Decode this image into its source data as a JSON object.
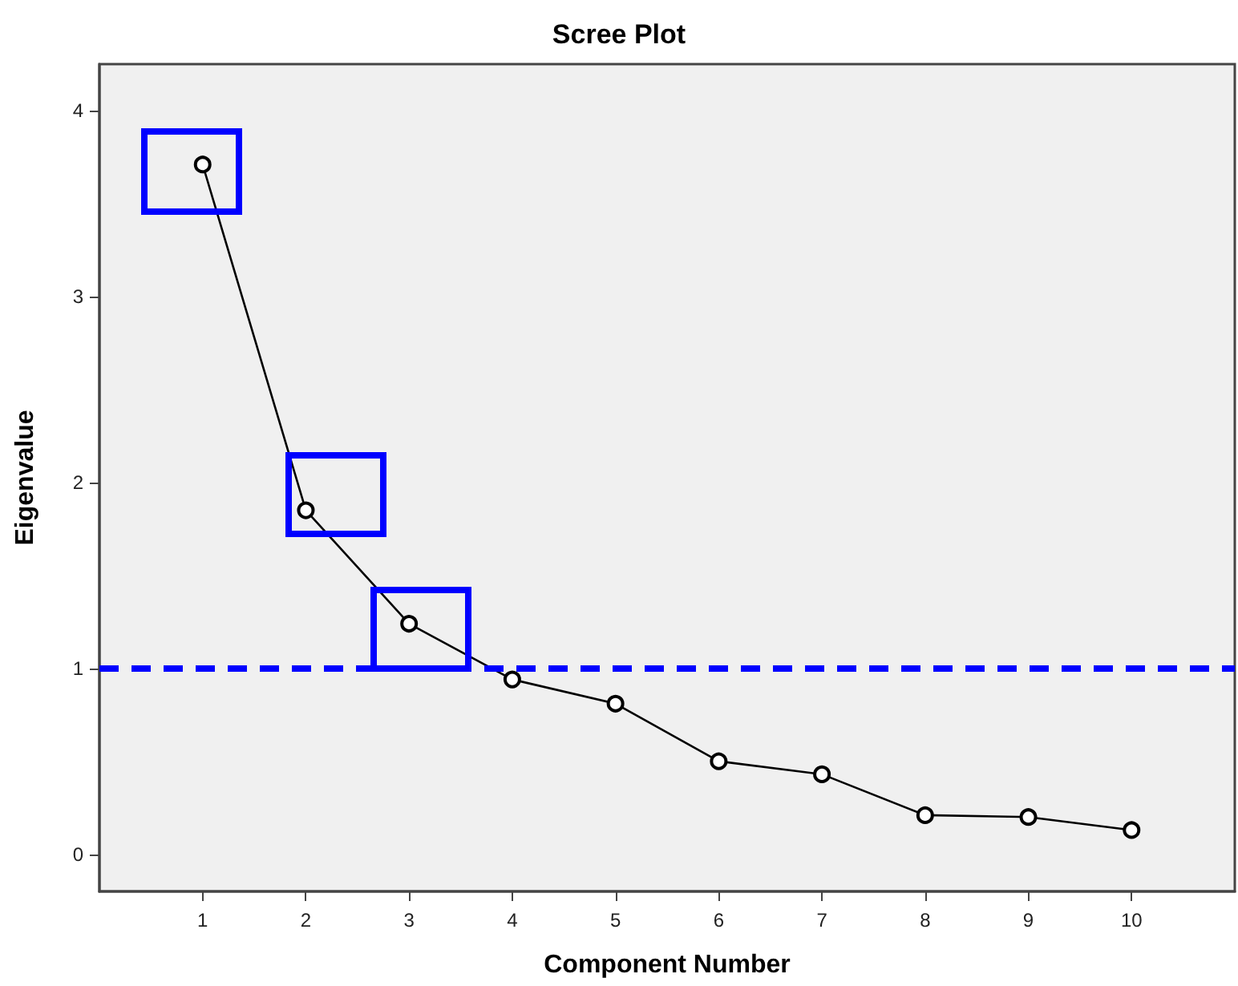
{
  "chart_data": {
    "type": "line",
    "title": "Scree Plot",
    "xlabel": "Component Number",
    "ylabel": "Eigenvalue",
    "x": [
      1,
      2,
      3,
      4,
      5,
      6,
      7,
      8,
      9,
      10
    ],
    "series": [
      {
        "color": "#000000",
        "values": [
          3.71,
          1.85,
          1.24,
          0.94,
          0.81,
          0.5,
          0.43,
          0.21,
          0.2,
          0.13
        ]
      }
    ],
    "xlim": [
      0,
      11
    ],
    "xticks": [
      1,
      2,
      3,
      4,
      5,
      6,
      7,
      8,
      9,
      10
    ],
    "ylim": [
      -0.2,
      4.25
    ],
    "yticks": [
      0,
      1,
      2,
      3,
      4
    ],
    "ref_lines": [
      {
        "axis": "y",
        "value": 1,
        "color": "#0000ff",
        "line_style": "dashed"
      }
    ],
    "grid": false,
    "marker": "circle",
    "line_style": "solid"
  }
}
